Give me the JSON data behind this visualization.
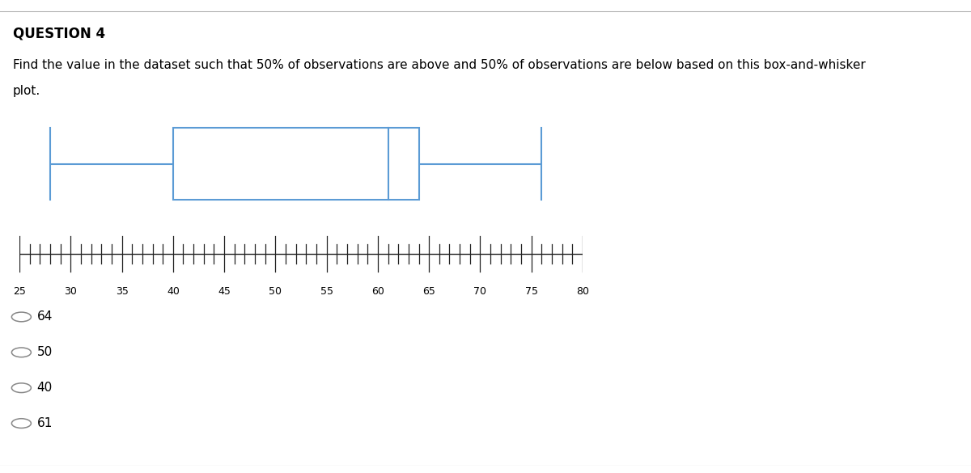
{
  "title": "QUESTION 4",
  "question_line1": "Find the value in the dataset such that 50% of observations are above and 50% of observations are below based on this box-and-whisker",
  "question_line2": "plot.",
  "whisker_min": 28,
  "q1": 40,
  "median": 61,
  "q3": 64,
  "whisker_max": 76,
  "axis_min": 25,
  "axis_max": 80,
  "axis_ticks": [
    25,
    30,
    35,
    40,
    45,
    50,
    55,
    60,
    65,
    70,
    75,
    80
  ],
  "box_color": "#5b9bd5",
  "box_facecolor": "#ffffff",
  "choices": [
    "64",
    "50",
    "40",
    "61"
  ],
  "bg_color": "#ffffff",
  "text_color": "#000000",
  "title_fontsize": 12,
  "question_fontsize": 11,
  "choice_fontsize": 11,
  "tick_label_fontsize": 9
}
